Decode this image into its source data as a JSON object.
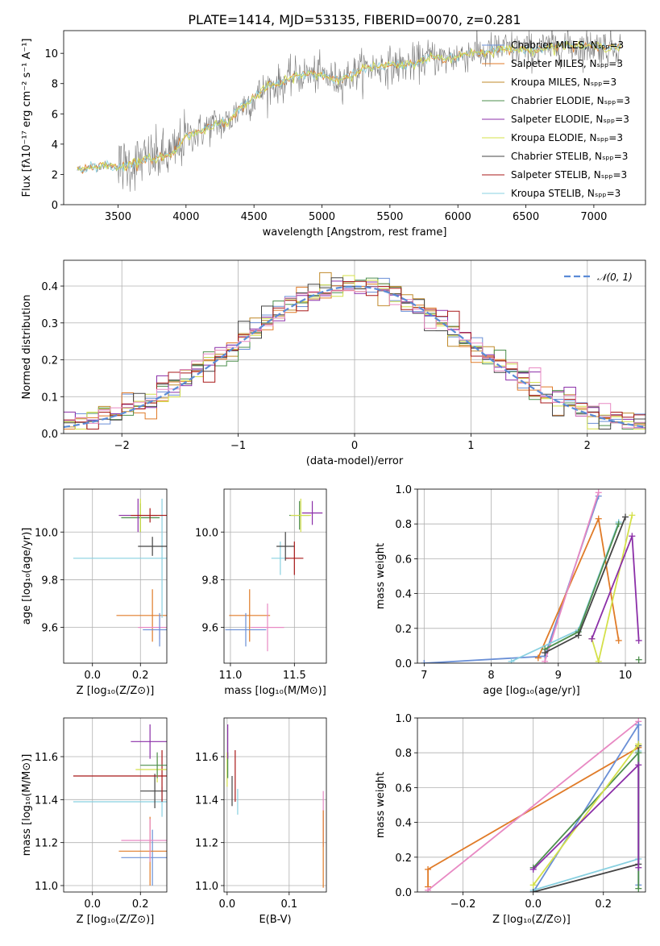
{
  "title": "PLATE=1414, MJD=53135, FIBERID=0070, z=0.281",
  "colors": [
    "#6a8fd6",
    "#e07b28",
    "#c08a2a",
    "#4d8f4d",
    "#8b2fa8",
    "#d4e04a",
    "#444444",
    "#a81818",
    "#88d0e0",
    "#e889c3"
  ],
  "legend": [
    "Chabrier MILES, Nₛₚₚ=3",
    "Salpeter MILES, Nₛₚₚ=3",
    "Kroupa MILES, Nₛₚₚ=3",
    "Chabrier ELODIE, Nₛₚₚ=3",
    "Salpeter ELODIE, Nₛₚₚ=3",
    "Kroupa ELODIE, Nₛₚₚ=3",
    "Chabrier STELIB, Nₛₚₚ=3",
    "Salpeter STELIB, Nₛₚₚ=3",
    "Kroupa STELIB, Nₛₚₚ=3"
  ],
  "legend_colors": [
    "#6a8fd6",
    "#e07b28",
    "#c08a2a",
    "#4d8f4d",
    "#8b2fa8",
    "#d4e04a",
    "#444444",
    "#a81818",
    "#88d0e0"
  ],
  "chart_data": [
    {
      "type": "line",
      "id": "spectrum",
      "xlabel": "wavelength [Angstrom, rest frame]",
      "ylabel": "Flux [fλ10⁻¹⁷ erg cm⁻² s⁻¹ A⁻¹]",
      "xlim": [
        3100,
        7380
      ],
      "ylim": [
        0,
        11.5
      ],
      "xticks": [
        3500,
        4000,
        4500,
        5000,
        5500,
        6000,
        6500,
        7000
      ],
      "yticks": [
        0,
        2,
        4,
        6,
        8,
        10
      ],
      "x": [
        3200,
        3300,
        3400,
        3500,
        3600,
        3700,
        3800,
        3900,
        4000,
        4100,
        4200,
        4300,
        4400,
        4500,
        4600,
        4700,
        4800,
        4900,
        5000,
        5100,
        5200,
        5300,
        5400,
        5500,
        5600,
        5700,
        5800,
        5900,
        6000,
        6100,
        6200,
        6300,
        6400,
        6500,
        6600,
        6700,
        6800,
        6900,
        7000,
        7100,
        7200
      ],
      "model": [
        2.3,
        2.5,
        2.6,
        2.5,
        2.7,
        3.0,
        3.1,
        3.3,
        4.5,
        4.8,
        5.3,
        5.4,
        6.4,
        7.0,
        7.8,
        8.0,
        8.5,
        8.6,
        8.6,
        8.2,
        8.5,
        9.0,
        9.1,
        9.2,
        9.2,
        9.4,
        9.8,
        9.6,
        9.8,
        10.1,
        10.0,
        10.3,
        10.3,
        10.2,
        10.3,
        10.4,
        10.6,
        10.4,
        10.5,
        10.4,
        10.5
      ],
      "legend_position": "right"
    },
    {
      "type": "step-histogram",
      "id": "residuals",
      "xlabel": "(data-model)/error",
      "ylabel": "Normed distribution",
      "xlim": [
        -2.5,
        2.5
      ],
      "ylim": [
        0,
        0.47
      ],
      "xticks": [
        -2,
        -1,
        0,
        1,
        2
      ],
      "xticklabels": [
        "−2",
        "−1",
        "0",
        "1",
        "2"
      ],
      "yticks": [
        0.0,
        0.1,
        0.2,
        0.3,
        0.4
      ],
      "yticklabels": [
        "0.0",
        "0.1",
        "0.2",
        "0.3",
        "0.4"
      ],
      "bin_width": 0.1,
      "legend": "𝒩(0, 1)",
      "gaussian_mean": 0,
      "gaussian_sigma": 1,
      "grid": true
    },
    {
      "type": "errorbar",
      "id": "age-vs-Z",
      "xlabel": "Z [log₁₀(Z/Z⊙)]",
      "ylabel": "age  [log₁₀(age/yr)]",
      "xlim": [
        -0.12,
        0.31
      ],
      "ylim": [
        9.45,
        10.18
      ],
      "xticks": [
        0.0,
        0.2
      ],
      "xticklabels": [
        "0.0",
        "0.2"
      ],
      "yticks": [
        9.6,
        9.8,
        10.0
      ],
      "yticklabels": [
        "9.6",
        "9.8",
        "10.0"
      ],
      "points": [
        {
          "c": 1,
          "x": 0.25,
          "y": 9.65,
          "xe": 0.15,
          "ye": 0.11
        },
        {
          "c": 9,
          "x": 0.28,
          "y": 9.6,
          "xe": 0.09,
          "ye": 0.05
        },
        {
          "c": 0,
          "x": 0.28,
          "y": 9.59,
          "xe": 0.07,
          "ye": 0.07
        },
        {
          "c": 8,
          "x": 0.29,
          "y": 9.89,
          "xe": 0.37,
          "ye": 0.25
        },
        {
          "c": 6,
          "x": 0.25,
          "y": 9.94,
          "xe": 0.06,
          "ye": 0.04
        },
        {
          "c": 3,
          "x": 0.2,
          "y": 10.06,
          "xe": 0.08,
          "ye": 0.06
        },
        {
          "c": 5,
          "x": 0.2,
          "y": 10.07,
          "xe": 0.09,
          "ye": 0.07
        },
        {
          "c": 4,
          "x": 0.19,
          "y": 10.07,
          "xe": 0.08,
          "ye": 0.07
        },
        {
          "c": 7,
          "x": 0.24,
          "y": 10.07,
          "xe": 0.08,
          "ye": 0.03
        }
      ]
    },
    {
      "type": "errorbar",
      "id": "age-vs-mass",
      "xlabel": "mass [log₁₀(M/M⊙)]",
      "ylabel": "",
      "xlim": [
        10.95,
        11.75
      ],
      "ylim": [
        9.45,
        10.18
      ],
      "xticks": [
        11.0,
        11.5
      ],
      "xticklabels": [
        "11.0",
        "11.5"
      ],
      "yticks": [
        9.6,
        9.8,
        10.0
      ],
      "yticklabels": [
        "9.6",
        "9.8",
        "10.0"
      ],
      "points": [
        {
          "c": 1,
          "x": 11.15,
          "y": 9.65,
          "xe": 0.16,
          "ye": 0.11
        },
        {
          "c": 0,
          "x": 11.12,
          "y": 9.59,
          "xe": 0.16,
          "ye": 0.07
        },
        {
          "c": 9,
          "x": 11.29,
          "y": 9.6,
          "xe": 0.13,
          "ye": 0.1
        },
        {
          "c": 8,
          "x": 11.39,
          "y": 9.89,
          "xe": 0.07,
          "ye": 0.07
        },
        {
          "c": 6,
          "x": 11.43,
          "y": 9.94,
          "xe": 0.07,
          "ye": 0.06
        },
        {
          "c": 7,
          "x": 11.5,
          "y": 9.89,
          "xe": 0.07,
          "ye": 0.07
        },
        {
          "c": 3,
          "x": 11.54,
          "y": 10.07,
          "xe": 0.08,
          "ye": 0.06
        },
        {
          "c": 5,
          "x": 11.55,
          "y": 10.07,
          "xe": 0.08,
          "ye": 0.07
        },
        {
          "c": 4,
          "x": 11.64,
          "y": 10.08,
          "xe": 0.08,
          "ye": 0.05
        }
      ]
    },
    {
      "type": "line",
      "id": "massweight-vs-age",
      "xlabel": "age  [log₁₀(age/yr)]",
      "ylabel": "mass weight",
      "xlim": [
        6.9,
        10.3
      ],
      "ylim": [
        0,
        1.0
      ],
      "xticks": [
        7,
        8,
        9,
        10
      ],
      "xticklabels": [
        "7",
        "8",
        "9",
        "10"
      ],
      "yticks": [
        0.0,
        0.2,
        0.4,
        0.6,
        0.8,
        1.0
      ],
      "yticklabels": [
        "0.0",
        "0.2",
        "0.4",
        "0.6",
        "0.8",
        "1.0"
      ],
      "grid": true,
      "series": [
        {
          "c": 0,
          "x": [
            7.0,
            8.8,
            9.6
          ],
          "y": [
            0.0,
            0.04,
            0.96
          ]
        },
        {
          "c": 1,
          "x": [
            8.7,
            9.6,
            9.9
          ],
          "y": [
            0.03,
            0.83,
            0.13
          ]
        },
        {
          "c": 9,
          "x": [
            8.8,
            9.6
          ],
          "y": [
            0.01,
            0.98
          ]
        },
        {
          "c": 8,
          "x": [
            8.3,
            9.3,
            9.9
          ],
          "y": [
            0.01,
            0.19,
            0.81
          ]
        },
        {
          "c": 3,
          "x": [
            8.8,
            9.3,
            9.9
          ],
          "y": [
            0.08,
            0.18,
            0.8
          ]
        },
        {
          "c": 6,
          "x": [
            8.8,
            9.3,
            10.0
          ],
          "y": [
            0.06,
            0.16,
            0.84
          ]
        },
        {
          "c": 5,
          "x": [
            9.5,
            9.6,
            10.1
          ],
          "y": [
            0.14,
            0.01,
            0.85
          ]
        },
        {
          "c": 4,
          "x": [
            9.5,
            10.1,
            10.2
          ],
          "y": [
            0.14,
            0.73,
            0.13
          ]
        },
        {
          "c": 3,
          "x": [
            10.2
          ],
          "y": [
            0.02
          ]
        }
      ]
    },
    {
      "type": "errorbar",
      "id": "mass-vs-Z",
      "xlabel": "Z [log₁₀(Z/Z⊙)]",
      "ylabel": "mass [log₁₀(M/M⊙)]",
      "xlim": [
        -0.12,
        0.31
      ],
      "ylim": [
        10.97,
        11.78
      ],
      "xticks": [
        0.0,
        0.2
      ],
      "xticklabels": [
        "0.0",
        "0.2"
      ],
      "yticks": [
        11.0,
        11.2,
        11.4,
        11.6
      ],
      "yticklabels": [
        "11.0",
        "11.2",
        "11.4",
        "11.6"
      ],
      "points": [
        {
          "c": 0,
          "x": 0.25,
          "y": 11.13,
          "xe": 0.13,
          "ye": 0.13
        },
        {
          "c": 1,
          "x": 0.24,
          "y": 11.16,
          "xe": 0.13,
          "ye": 0.16
        },
        {
          "c": 9,
          "x": 0.24,
          "y": 11.21,
          "xe": 0.12,
          "ye": 0.1
        },
        {
          "c": 8,
          "x": 0.29,
          "y": 11.39,
          "xe": 0.37,
          "ye": 0.07
        },
        {
          "c": 6,
          "x": 0.26,
          "y": 11.44,
          "xe": 0.06,
          "ye": 0.08
        },
        {
          "c": 7,
          "x": 0.29,
          "y": 11.51,
          "xe": 0.37,
          "ye": 0.12
        },
        {
          "c": 5,
          "x": 0.27,
          "y": 11.54,
          "xe": 0.09,
          "ye": 0.06
        },
        {
          "c": 3,
          "x": 0.27,
          "y": 11.56,
          "xe": 0.07,
          "ye": 0.06
        },
        {
          "c": 4,
          "x": 0.24,
          "y": 11.67,
          "xe": 0.08,
          "ye": 0.08
        }
      ]
    },
    {
      "type": "errorbar",
      "id": "mass-vs-EBV",
      "xlabel": "E(B-V)",
      "ylabel": "",
      "xlim": [
        -0.005,
        0.16
      ],
      "ylim": [
        10.97,
        11.78
      ],
      "xticks": [
        0.0,
        0.1
      ],
      "xticklabels": [
        "0.0",
        "0.1"
      ],
      "yticks": [
        11.0,
        11.2,
        11.4,
        11.6
      ],
      "yticklabels": [
        "11.0",
        "11.2",
        "11.4",
        "11.6"
      ],
      "points": [
        {
          "c": 5,
          "x": 0.0,
          "y": 11.54,
          "xe": 0.0,
          "ye": 0.08
        },
        {
          "c": 3,
          "x": 0.001,
          "y": 11.56,
          "xe": 0.0,
          "ye": 0.06
        },
        {
          "c": 4,
          "x": 0.001,
          "y": 11.67,
          "xe": 0.0,
          "ye": 0.08
        },
        {
          "c": 6,
          "x": 0.008,
          "y": 11.44,
          "xe": 0.0,
          "ye": 0.07
        },
        {
          "c": 7,
          "x": 0.013,
          "y": 11.51,
          "xe": 0.0,
          "ye": 0.12
        },
        {
          "c": 8,
          "x": 0.017,
          "y": 11.39,
          "xe": 0.0,
          "ye": 0.06
        },
        {
          "c": 9,
          "x": 0.155,
          "y": 11.31,
          "xe": 0.0,
          "ye": 0.13
        },
        {
          "c": 1,
          "x": 0.155,
          "y": 11.17,
          "xe": 0.0,
          "ye": 0.18
        }
      ]
    },
    {
      "type": "line",
      "id": "massweight-vs-Z",
      "xlabel": "Z [log₁₀(Z/Z⊙)]",
      "ylabel": "mass weight",
      "xlim": [
        -0.33,
        0.32
      ],
      "ylim": [
        0,
        1.0
      ],
      "xticks": [
        -0.2,
        0.0,
        0.2
      ],
      "xticklabels": [
        "−0.2",
        "0.0",
        "0.2"
      ],
      "yticks": [
        0.0,
        0.2,
        0.4,
        0.6,
        0.8,
        1.0
      ],
      "yticklabels": [
        "0.0",
        "0.2",
        "0.4",
        "0.6",
        "0.8",
        "1.0"
      ],
      "grid": true,
      "series": [
        {
          "c": 1,
          "x": [
            -0.3,
            -0.3,
            0.3
          ],
          "y": [
            0.03,
            0.13,
            0.83
          ]
        },
        {
          "c": 9,
          "x": [
            -0.3,
            0.3
          ],
          "y": [
            0.01,
            0.98
          ]
        },
        {
          "c": 0,
          "x": [
            0.0,
            0.3,
            0.3
          ],
          "y": [
            0.0,
            0.96,
            0.04
          ]
        },
        {
          "c": 8,
          "x": [
            0.0,
            0.3,
            0.3
          ],
          "y": [
            0.01,
            0.19,
            0.81
          ]
        },
        {
          "c": 6,
          "x": [
            0.0,
            0.3,
            0.3
          ],
          "y": [
            0.0,
            0.16,
            0.84
          ]
        },
        {
          "c": 3,
          "x": [
            0.0,
            0.3,
            0.3
          ],
          "y": [
            0.14,
            0.8,
            0.02
          ]
        },
        {
          "c": 5,
          "x": [
            0.0,
            0.3
          ],
          "y": [
            0.04,
            0.85
          ]
        },
        {
          "c": 4,
          "x": [
            0.0,
            0.3,
            0.3
          ],
          "y": [
            0.13,
            0.73,
            0.14
          ]
        }
      ]
    }
  ]
}
